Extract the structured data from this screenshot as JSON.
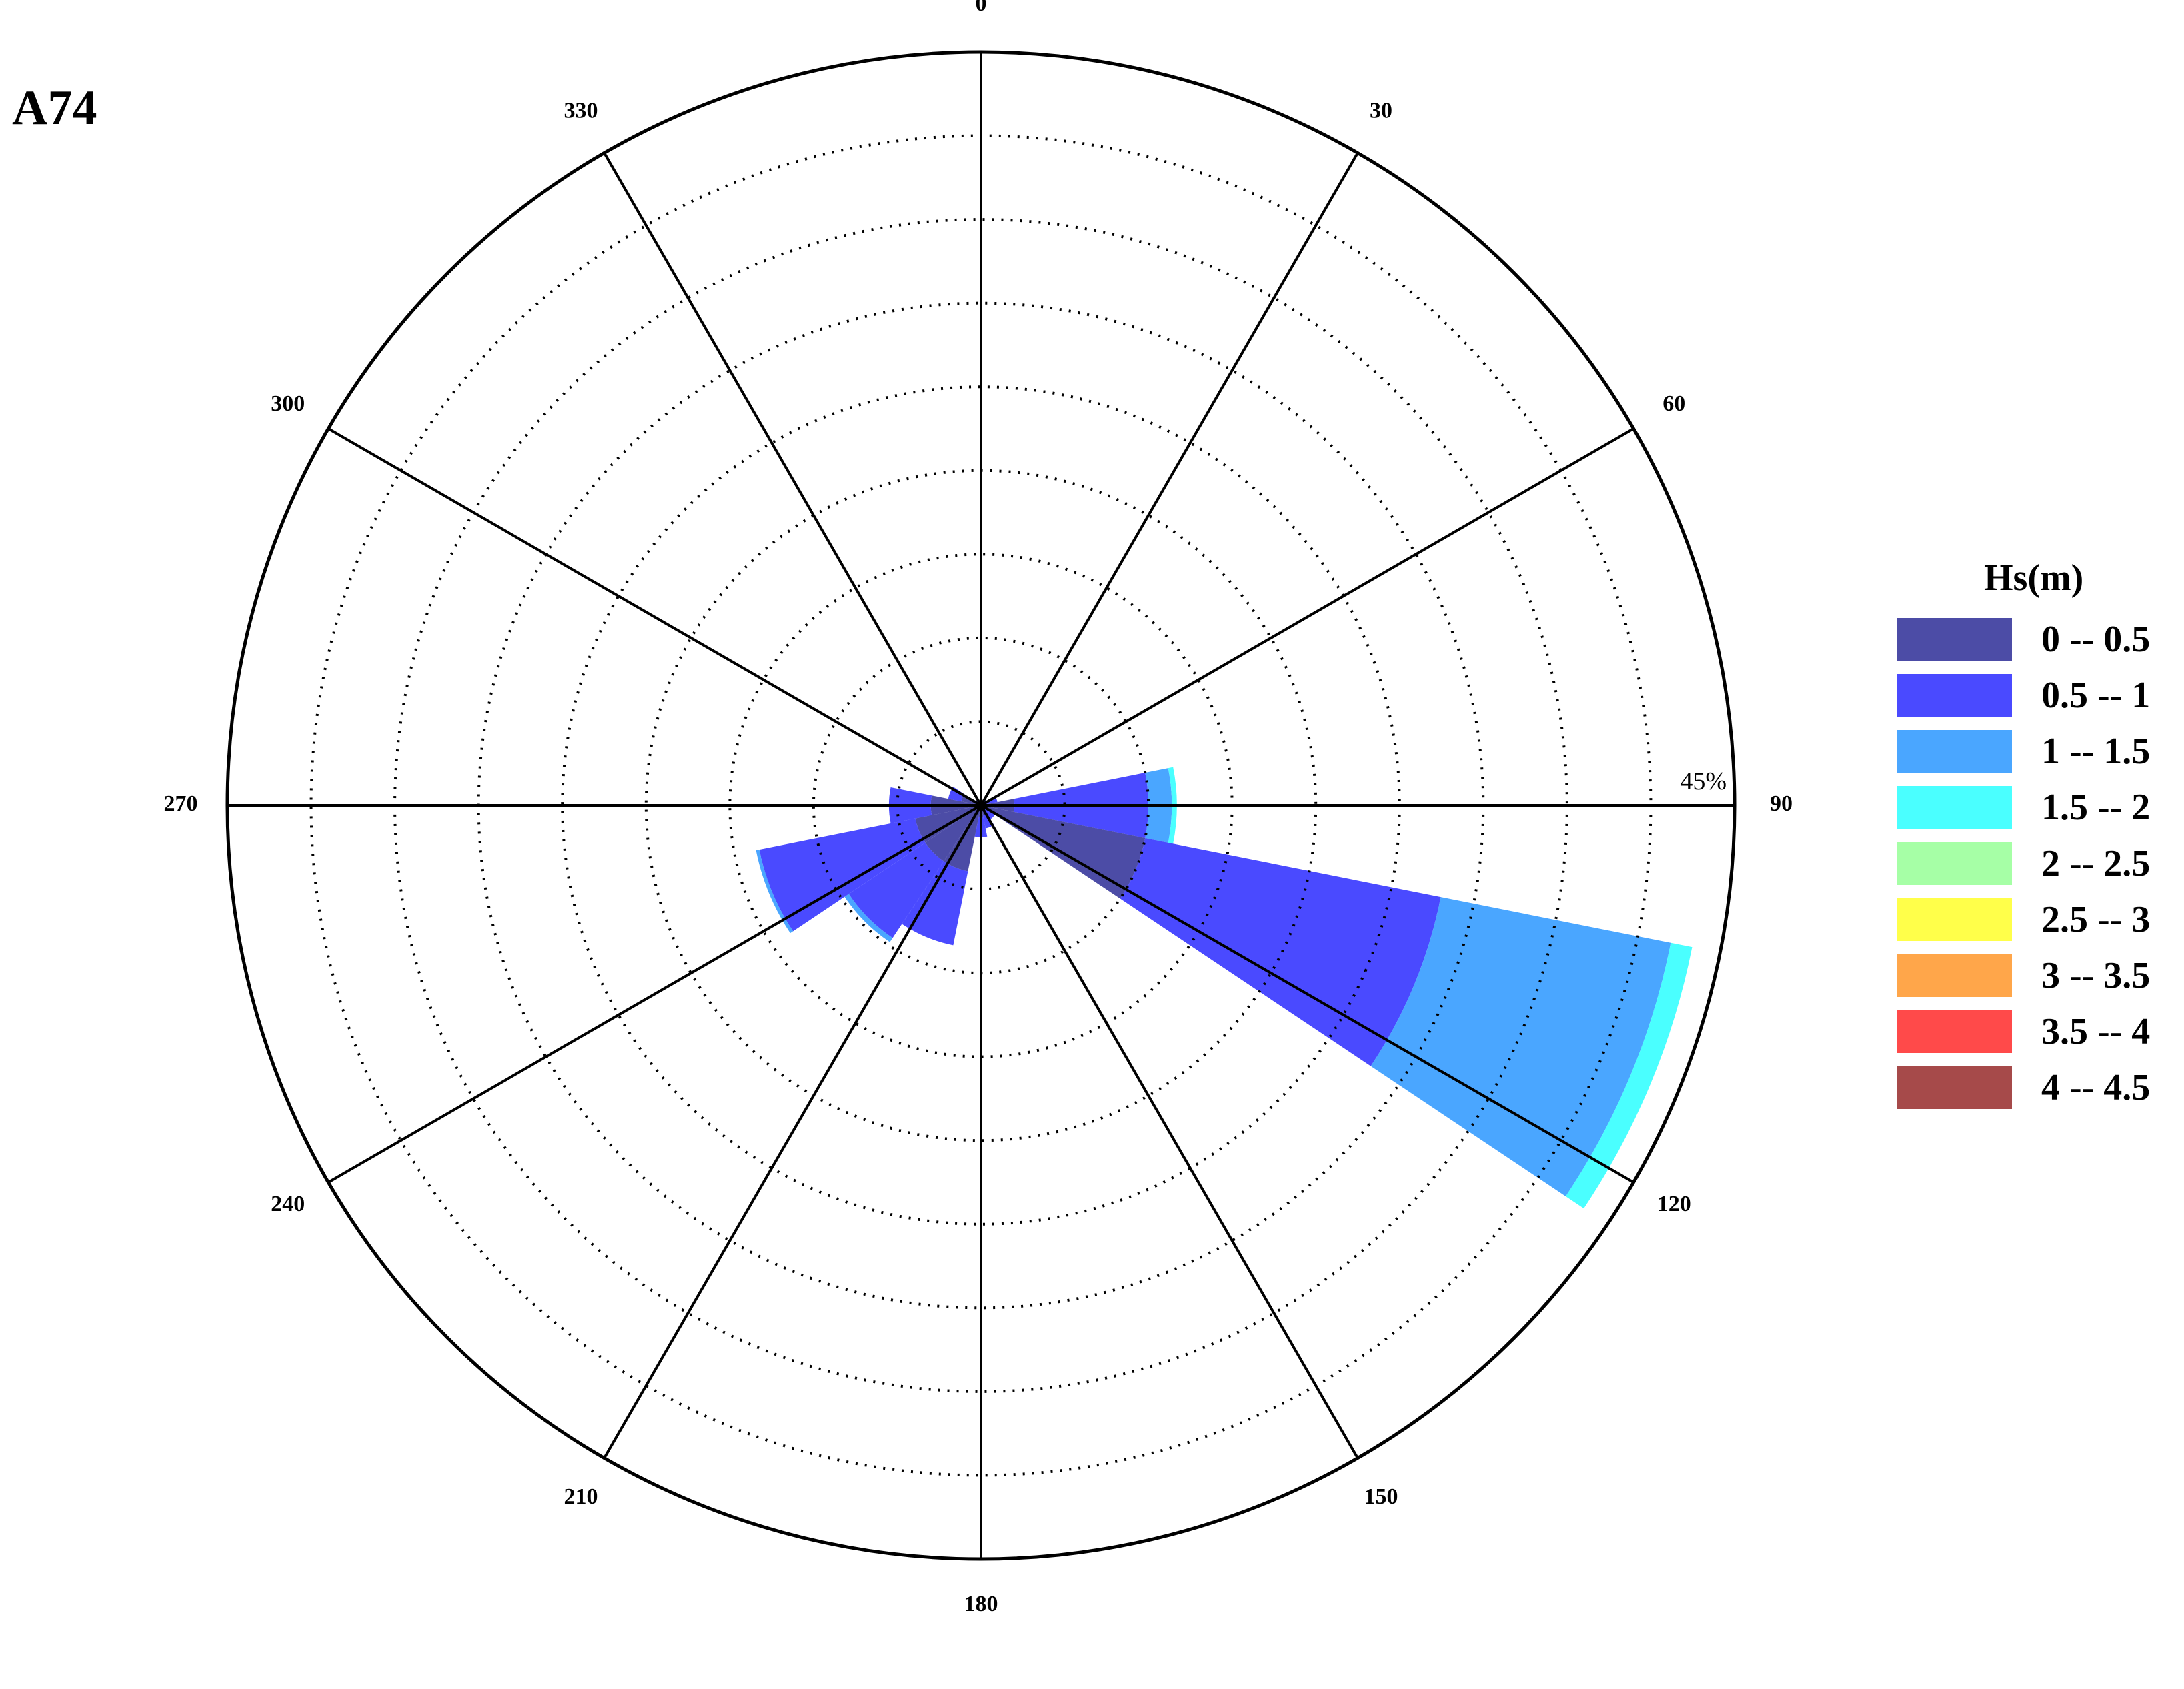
{
  "panel_label": "A74",
  "chart_data": {
    "type": "polar-stacked-bar",
    "title": "",
    "direction_labels": [
      "0",
      "30",
      "60",
      "90",
      "120",
      "150",
      "180",
      "210",
      "240",
      "270",
      "300",
      "330"
    ],
    "radial_max_label": "45%",
    "radial_max": 45,
    "radial_rings": 9,
    "legend_title": "Hs(m)",
    "bins": [
      {
        "label": "0 -- 0.5",
        "color": "#4c4ca6"
      },
      {
        "label": "0.5 -- 1",
        "color": "#4a4aff"
      },
      {
        "label": "1 -- 1.5",
        "color": "#4aa6ff"
      },
      {
        "label": "1.5 -- 2",
        "color": "#4affff"
      },
      {
        "label": "2 -- 2.5",
        "color": "#a6ffa6"
      },
      {
        "label": "2.5 -- 3",
        "color": "#ffff4a"
      },
      {
        "label": "3 -- 3.5",
        "color": "#ffa64a"
      },
      {
        "label": "3.5 -- 4",
        "color": "#ff4a4a"
      },
      {
        "label": "4 -- 4.5",
        "color": "#a64a4a"
      }
    ],
    "sector_width_deg": 22.5,
    "sectors": [
      {
        "direction": 45,
        "values": [
          0.2,
          0.2,
          0.0,
          0.0
        ]
      },
      {
        "direction": 67.5,
        "values": [
          0.4,
          0.6,
          0.0,
          0.0
        ]
      },
      {
        "direction": 90,
        "values": [
          2.0,
          8.0,
          1.4,
          0.3
        ]
      },
      {
        "direction": 112.5,
        "values": [
          10.0,
          18.0,
          14.0,
          1.3
        ]
      },
      {
        "direction": 135,
        "values": [
          0.2,
          0.8,
          0.0,
          0.0
        ]
      },
      {
        "direction": 157.5,
        "values": [
          0.6,
          0.8,
          0.0,
          0.0
        ]
      },
      {
        "direction": 180,
        "values": [
          0.7,
          1.2,
          0.0,
          0.0
        ]
      },
      {
        "direction": 202.5,
        "values": [
          4.0,
          4.5,
          0.0,
          0.0
        ]
      },
      {
        "direction": 225,
        "values": [
          4.0,
          5.5,
          0.3,
          0.0
        ]
      },
      {
        "direction": 247.5,
        "values": [
          4.0,
          9.5,
          0.2,
          0.0
        ]
      },
      {
        "direction": 270,
        "values": [
          3.0,
          2.5,
          0.0,
          0.0
        ]
      },
      {
        "direction": 292.5,
        "values": [
          1.2,
          0.8,
          0.0,
          0.0
        ]
      },
      {
        "direction": 315,
        "values": [
          0.2,
          0.2,
          0.0,
          0.0
        ]
      }
    ]
  }
}
